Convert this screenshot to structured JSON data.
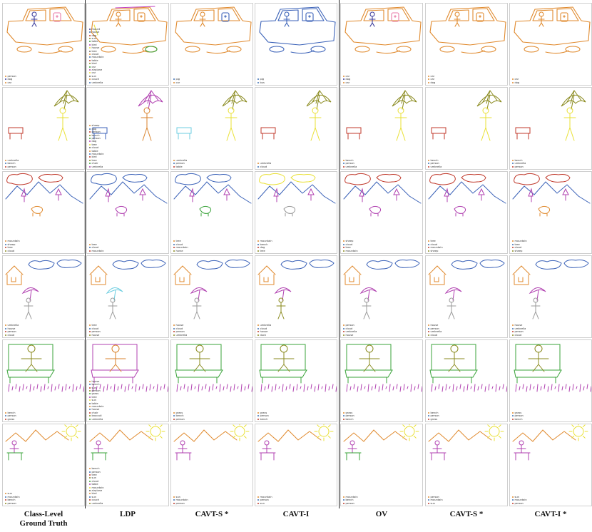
{
  "columns": [
    {
      "title": "Class-Level\nGround Truth"
    },
    {
      "title": "LDP"
    },
    {
      "title": "CAVT-S *"
    },
    {
      "title": "CAVT-I"
    },
    {
      "title": "OV"
    },
    {
      "title": "CAVT-S *"
    },
    {
      "title": "CAVT-I *"
    }
  ],
  "rows": [
    {
      "scene": "car",
      "cells": [
        {
          "legend": [
            "person",
            "dog",
            "car"
          ],
          "colors": [
            "#e08a2e",
            "#3b3b9b",
            "#e08a2e"
          ]
        },
        {
          "legend": [
            "mount",
            "house",
            "dog",
            "sun",
            "table",
            "bird",
            "house",
            "tree",
            "cloud",
            "mountain",
            "table",
            "bird",
            "car",
            "airplane",
            "car",
            "sun",
            "couch",
            "umbrella"
          ],
          "colors": [
            "#3b3b9b"
          ]
        },
        {
          "legend": [
            "pig",
            "car"
          ],
          "colors": [
            "#3b6fb5",
            "#e08a2e"
          ]
        },
        {
          "legend": [
            "pig",
            "bus"
          ],
          "colors": [
            "#3b6fb5",
            "#3b6fb5"
          ]
        },
        {
          "legend": [
            "car",
            "dog",
            "car"
          ],
          "colors": [
            "#e08a2e",
            "#3b3b9b",
            "#e08a2e"
          ]
        },
        {
          "legend": [
            "car",
            "car",
            "dog"
          ],
          "colors": [
            "#e08a2e",
            "#e08a2e",
            "#e08a2e"
          ]
        },
        {
          "legend": [
            "car",
            "dog"
          ],
          "colors": [
            "#e08a2e",
            "#e08a2e"
          ]
        }
      ]
    },
    {
      "scene": "umbrella",
      "cells": [
        {
          "legend": [
            "umbrella",
            "bench",
            "person"
          ]
        },
        {
          "legend": [
            "sheep",
            "dog",
            "person",
            "bench",
            "person",
            "dog",
            "tree",
            "cloud",
            "table",
            "mountain",
            "bird",
            "tree",
            "chair",
            "umbrella"
          ]
        },
        {
          "legend": [
            "umbrella",
            "person",
            "table"
          ]
        },
        {
          "legend": [
            "umbrella",
            "cloud"
          ]
        },
        {
          "legend": [
            "bench",
            "person",
            "umbrella"
          ]
        },
        {
          "legend": [
            "bench",
            "person",
            "umbrella"
          ]
        },
        {
          "legend": [
            "bench",
            "umbrella",
            "person"
          ]
        }
      ]
    },
    {
      "scene": "mountain",
      "cells": [
        {
          "legend": [
            "mountain",
            "sheep",
            "tree",
            "cloud"
          ]
        },
        {
          "legend": [
            "tree",
            "cloud",
            "mountain"
          ]
        },
        {
          "legend": [
            "tree",
            "cloud",
            "mountain",
            "horse"
          ]
        },
        {
          "legend": [
            "mountain",
            "bench",
            "dog",
            "tree"
          ]
        },
        {
          "legend": [
            "sheep",
            "cloud",
            "tree",
            "mountain"
          ]
        },
        {
          "legend": [
            "tree",
            "cloud",
            "mountain",
            "sheep"
          ]
        },
        {
          "legend": [
            "mountain",
            "tree",
            "cloud",
            "sheep"
          ]
        }
      ]
    },
    {
      "scene": "house",
      "cells": [
        {
          "legend": [
            "umbrella",
            "house",
            "person",
            "cloud"
          ]
        },
        {
          "legend": [
            "tree",
            "cloud",
            "person",
            "house"
          ]
        },
        {
          "legend": [
            "house",
            "cloud",
            "person",
            "umbrella"
          ]
        },
        {
          "legend": [
            "umbrella",
            "cloud",
            "house",
            "duck"
          ]
        },
        {
          "legend": [
            "person",
            "cloud",
            "umbrella",
            "house"
          ]
        },
        {
          "legend": [
            "house",
            "person",
            "umbrella",
            "cloud"
          ]
        },
        {
          "legend": [
            "house",
            "umbrella",
            "person",
            "cloud"
          ]
        }
      ]
    },
    {
      "scene": "bench",
      "cells": [
        {
          "legend": [
            "bench",
            "person",
            "grass"
          ]
        },
        {
          "legend": [
            "house",
            "bench",
            "sun",
            "person",
            "grass",
            "tree",
            "sun",
            "table",
            "mountain",
            "house",
            "chair",
            "broccoli",
            "umbrella"
          ]
        },
        {
          "legend": [
            "grass",
            "bench",
            "person"
          ]
        },
        {
          "legend": [
            "grass",
            "person",
            "bench"
          ]
        },
        {
          "legend": [
            "grass",
            "person",
            "bench"
          ]
        },
        {
          "legend": [
            "bench",
            "person",
            "grass"
          ]
        },
        {
          "legend": [
            "grass",
            "person",
            "bench"
          ]
        }
      ]
    },
    {
      "scene": "sun",
      "cells": [
        {
          "legend": [
            "sun",
            "mountain",
            "bench",
            "person"
          ]
        },
        {
          "legend": [
            "bench",
            "person",
            "tree",
            "sun",
            "cloud",
            "table",
            "mountain",
            "airplane",
            "bird",
            "sun",
            "couch",
            "umbrella"
          ]
        },
        {
          "legend": [
            "sun",
            "mountain",
            "person"
          ]
        },
        {
          "legend": [
            "mountain",
            "person",
            "sun"
          ]
        },
        {
          "legend": [
            "mountain",
            "bench",
            "person"
          ]
        },
        {
          "legend": [
            "person",
            "mountain",
            "sun"
          ]
        },
        {
          "legend": [
            "sun",
            "mountain",
            "person"
          ]
        }
      ]
    }
  ]
}
